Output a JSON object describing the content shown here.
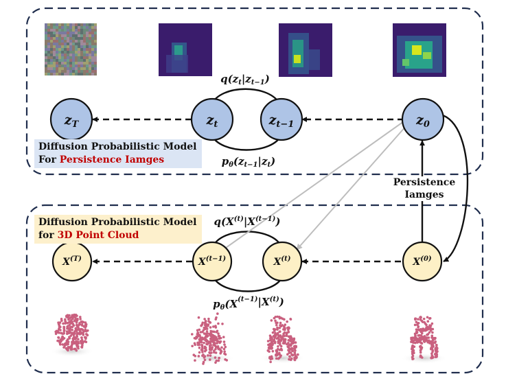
{
  "top_panel": {
    "label_line1": "Diffusion Probabilistic Model",
    "label_line2_prefix": "For",
    "label_line2_highlight": "Persistence Iamges",
    "nodes": [
      "z_T",
      "z_t",
      "z_{t-1}",
      "z_0"
    ],
    "forward_eq": "q(z_t|z_{t-1})",
    "reverse_eq": "p_θ(z_{t-1}|z_t)"
  },
  "bottom_panel": {
    "label_line1": "Diffusion Probabilistic Model",
    "label_line2_prefix": "for",
    "label_line2_highlight": "3D Point Cloud",
    "nodes": [
      "X^(T)",
      "X^(t-1)",
      "X^(t)",
      "X^(0)"
    ],
    "forward_eq": "q(X^(t)|X^(t-1))",
    "reverse_eq": "p_θ(X^(t-1)|X^(t))"
  },
  "side_label": {
    "line1": "Persistence",
    "line2": "Iamges"
  },
  "colors": {
    "top_node_fill": "#aec4e6",
    "bottom_node_fill": "#fdf0c6",
    "top_label_bg": "#dbe5f4",
    "bottom_label_bg": "#fdf0cc",
    "highlight_red": "#c00000",
    "panel_border": "#1f2d4d",
    "cross_arrow": "#bdbdbd",
    "point_cloud": "#c9607f"
  }
}
